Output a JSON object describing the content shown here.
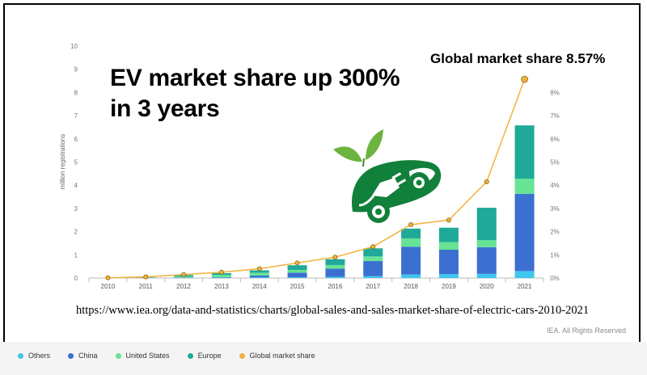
{
  "headline": {
    "line1": "EV market share up 300%",
    "line2": "in 3 years"
  },
  "annotation": {
    "global_share": "Global market share 8.57%"
  },
  "source_url": "https://www.iea.org/data-and-statistics/charts/global-sales-and-sales-market-share-of-electric-cars-2010-2021",
  "rights": "IEA. All Rights Reserved",
  "colors": {
    "others": "#3ec6ef",
    "china": "#3b6fd0",
    "united_states": "#66e394",
    "europe": "#1fa999",
    "global_share_line": "#f2b23a",
    "ev_icon": "#11803a"
  },
  "icon": {
    "name": "electric-car-plug-leaf-icon"
  },
  "chart_data": {
    "type": "bar",
    "stacked": true,
    "ylabel": "million registrations",
    "ylim": [
      0,
      10
    ],
    "y_ticks": [
      "0",
      "1",
      "2",
      "3",
      "4",
      "5",
      "6",
      "7",
      "8",
      "9",
      "10"
    ],
    "y2lim": [
      0,
      10
    ],
    "y2_ticks": [
      "0%",
      "1%",
      "2%",
      "3%",
      "4%",
      "5%",
      "6%",
      "7%",
      "8%"
    ],
    "categories": [
      "2010",
      "2011",
      "2012",
      "2013",
      "2014",
      "2015",
      "2016",
      "2017",
      "2018",
      "2019",
      "2020",
      "2021"
    ],
    "series": [
      {
        "name": "Others",
        "color": "#3ec6ef",
        "values": [
          0.0,
          0.0,
          0.01,
          0.02,
          0.03,
          0.03,
          0.05,
          0.08,
          0.15,
          0.17,
          0.18,
          0.3
        ]
      },
      {
        "name": "China",
        "color": "#3b6fd0",
        "values": [
          0.0,
          0.01,
          0.01,
          0.02,
          0.08,
          0.2,
          0.35,
          0.65,
          1.2,
          1.05,
          1.15,
          3.33
        ]
      },
      {
        "name": "United States",
        "color": "#66e394",
        "values": [
          0.0,
          0.02,
          0.05,
          0.1,
          0.12,
          0.12,
          0.16,
          0.2,
          0.36,
          0.33,
          0.3,
          0.65
        ]
      },
      {
        "name": "Europe",
        "color": "#1fa999",
        "values": [
          0.0,
          0.01,
          0.06,
          0.07,
          0.1,
          0.2,
          0.25,
          0.35,
          0.42,
          0.62,
          1.4,
          2.3
        ]
      }
    ],
    "line_series": {
      "name": "Global market share",
      "axis": "right",
      "unit": "%",
      "color": "#f2b23a",
      "values": [
        0.01,
        0.05,
        0.15,
        0.25,
        0.4,
        0.65,
        0.9,
        1.35,
        2.3,
        2.5,
        4.15,
        8.57
      ]
    },
    "legend": [
      "Others",
      "China",
      "United States",
      "Europe",
      "Global market share"
    ],
    "legend_position": "bottom-left",
    "grid": false
  }
}
